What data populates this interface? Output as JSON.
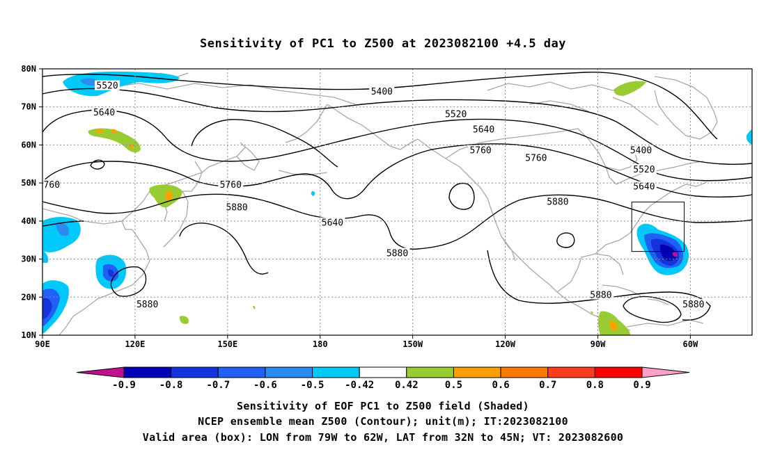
{
  "title": "Sensitivity of PC1 to Z500 at 2023082100 +4.5 day",
  "axes": {
    "lat_labels": [
      "80N",
      "70N",
      "60N",
      "50N",
      "40N",
      "30N",
      "20N",
      "10N"
    ],
    "lon_labels": [
      "90E",
      "120E",
      "150E",
      "180",
      "150W",
      "120W",
      "90W",
      "60W"
    ]
  },
  "contour_labels": [
    {
      "text": "5520",
      "lon": 111,
      "lat": 75.5
    },
    {
      "text": "5640",
      "lon": 110,
      "lat": 68.5
    },
    {
      "text": "5400",
      "lon": 200,
      "lat": 74
    },
    {
      "text": "5520",
      "lon": 224,
      "lat": 68
    },
    {
      "text": "5640",
      "lon": 233,
      "lat": 64
    },
    {
      "text": "5760",
      "lon": 232,
      "lat": 58.5
    },
    {
      "text": "5760",
      "lon": 250,
      "lat": 56.5
    },
    {
      "text": "5400",
      "lon": 284,
      "lat": 58.5
    },
    {
      "text": "5520",
      "lon": 285,
      "lat": 53.5
    },
    {
      "text": "5640",
      "lon": 285,
      "lat": 49
    },
    {
      "text": "5880",
      "lon": 257,
      "lat": 45
    },
    {
      "text": "5760",
      "lon": 151,
      "lat": 49.5
    },
    {
      "text": "5880",
      "lon": 153,
      "lat": 43.5
    },
    {
      "text": "5640",
      "lon": 184,
      "lat": 39.5
    },
    {
      "text": "5880",
      "lon": 205,
      "lat": 31.5
    },
    {
      "text": "5880",
      "lon": 124,
      "lat": 18
    },
    {
      "text": "5880",
      "lon": 271,
      "lat": 20.5
    },
    {
      "text": "5880",
      "lon": 301,
      "lat": 18
    },
    {
      "text": "760",
      "lon": 93,
      "lat": 49.5
    }
  ],
  "valid_box": {
    "lon_min": 281,
    "lon_max": 298,
    "lat_min": 32,
    "lat_max": 45
  },
  "colorbar": {
    "labels": [
      "-0.9",
      "-0.8",
      "-0.7",
      "-0.6",
      "-0.5",
      "-0.42",
      "0.42",
      "0.5",
      "0.6",
      "0.7",
      "0.8",
      "0.9"
    ],
    "colors": [
      "#c0108f",
      "#0000b4",
      "#1433dc",
      "#2060f5",
      "#2a8cf0",
      "#00c8f8",
      "#ffffff",
      "#99cc33",
      "#ffa000",
      "#ff7800",
      "#ff3c1e",
      "#ff0000",
      "#ffa0c8"
    ]
  },
  "footer": {
    "line1": "Sensitivity of EOF PC1 to Z500 field (Shaded)",
    "line2": "NCEP ensemble mean Z500 (Contour); unit(m); IT:2023082100",
    "line3": "Valid area (box): LON from 79W to 62W, LAT from 32N to 45N; VT: 2023082600"
  }
}
